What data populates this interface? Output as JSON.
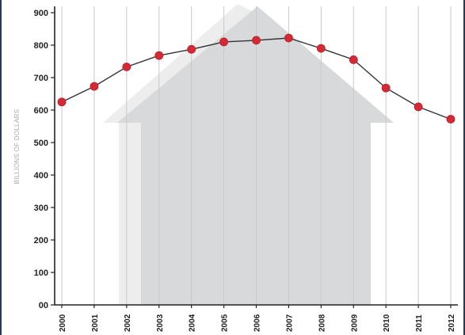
{
  "chart_data": {
    "type": "line",
    "title": "",
    "xlabel": "",
    "ylabel": "BILLIONS OF DOLLARS",
    "x": [
      "2000",
      "2001",
      "2002",
      "2003",
      "2004",
      "2005",
      "2006",
      "2007",
      "2008",
      "2009",
      "2010",
      "2011",
      "2012"
    ],
    "y_tick_labels": [
      "00",
      "100",
      "200",
      "300",
      "400",
      "500",
      "600",
      "700",
      "800",
      "900"
    ],
    "ylim": [
      0,
      900
    ],
    "grid": "vertical",
    "legend": "none",
    "series": [
      {
        "values": [
          625,
          673,
          733,
          768,
          787,
          810,
          815,
          822,
          790,
          755,
          668,
          610,
          572
        ]
      }
    ],
    "colors": {
      "line": "#333333",
      "marker": "#d42a36",
      "gridline": "#c9c9c9",
      "background_arrow": "#d7d9db",
      "arrow_highlight": "#ededee",
      "frame": "#1f3b5e"
    },
    "decoration": "upward-arrow"
  }
}
